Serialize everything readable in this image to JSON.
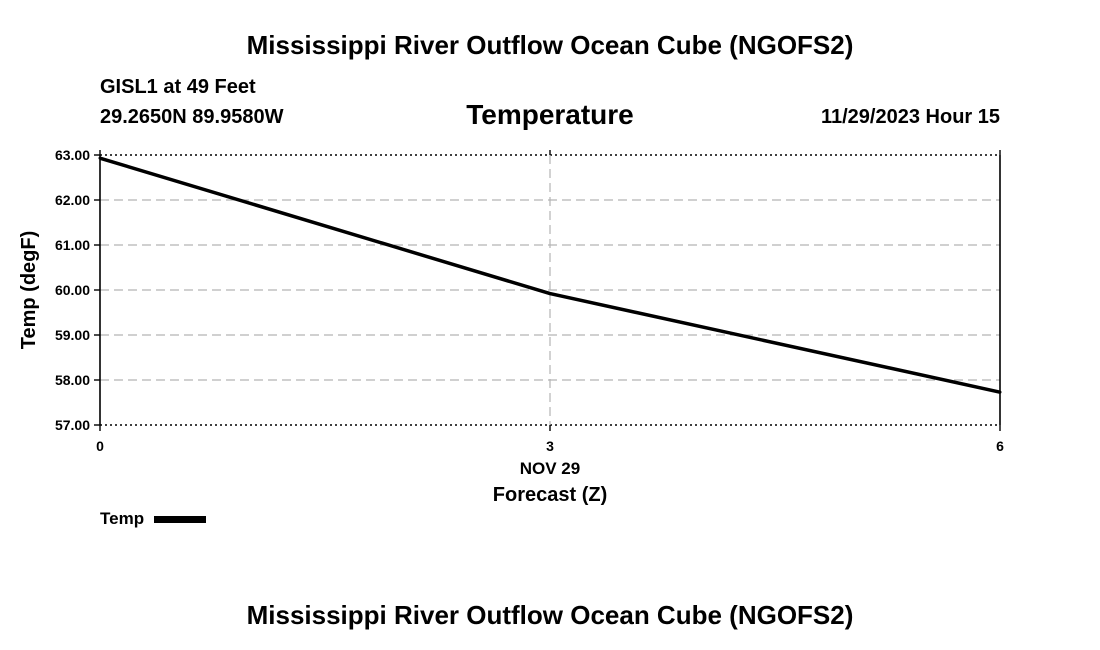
{
  "header": {
    "title": "Mississippi River Outflow Ocean Cube (NGOFS2)",
    "station": "GISL1 at 49 Feet",
    "coords": "29.2650N  89.9580W",
    "run_time": "11/29/2023 Hour 15"
  },
  "footer": {
    "title": "Mississippi River Outflow Ocean Cube (NGOFS2)"
  },
  "chart_data": {
    "type": "line",
    "title": "",
    "subtitle": "Temperature",
    "xlabel": "Forecast (Z)",
    "ylabel": "Temp (degF)",
    "xlim": [
      0,
      6
    ],
    "ylim": [
      57,
      63
    ],
    "x_ticks": [
      {
        "value": 0,
        "label": "0"
      },
      {
        "value": 3,
        "label": "3"
      },
      {
        "value": 6,
        "label": "6"
      }
    ],
    "x_date_label": {
      "value": 3,
      "label": "NOV 29"
    },
    "y_ticks": [
      57,
      58,
      59,
      60,
      61,
      62,
      63
    ],
    "y_tick_format_decimals": 2,
    "grid": true,
    "legend_position": "bottom-left",
    "series": [
      {
        "name": "Temp",
        "color": "#000000",
        "x": [
          0,
          3,
          6
        ],
        "y": [
          62.93,
          59.92,
          57.73
        ]
      }
    ]
  }
}
